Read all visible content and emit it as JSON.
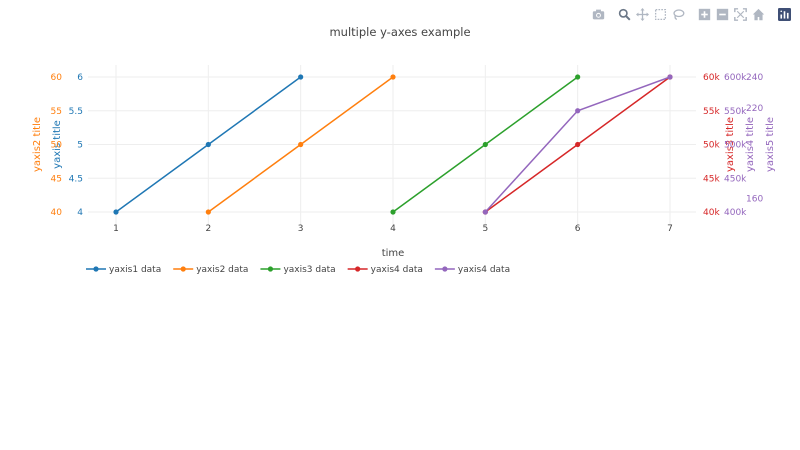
{
  "modebar": {
    "buttons": [
      {
        "name": "camera-icon"
      },
      {
        "name": "zoom-icon"
      },
      {
        "name": "pan-icon"
      },
      {
        "name": "box-select-icon"
      },
      {
        "name": "lasso-select-icon"
      },
      {
        "name": "zoom-in-icon"
      },
      {
        "name": "zoom-out-icon"
      },
      {
        "name": "autoscale-icon"
      },
      {
        "name": "reset-axes-icon"
      },
      {
        "name": "plotly-logo-icon"
      }
    ],
    "icon_color": "#b0b7c2",
    "active_color": "#6b7787",
    "logo_color": "#3f4f75"
  },
  "chart_data": {
    "type": "line",
    "title": "multiple y-axes example",
    "xlabel": "time",
    "xlim": [
      0.7,
      7.3
    ],
    "xticks": [
      "1",
      "2",
      "3",
      "4",
      "5",
      "6",
      "7"
    ],
    "grid": true,
    "legend_position": "bottom-left",
    "axes": [
      {
        "id": "y1",
        "title": "yaxis title",
        "color": "#1f77b4",
        "side": "left",
        "range": [
          39,
          61.5
        ],
        "ticks": [
          {
            "v": 40,
            "label": "4"
          },
          {
            "v": 45,
            "label": "4.5"
          },
          {
            "v": 50,
            "label": "5"
          },
          {
            "v": 55,
            "label": "5.5"
          },
          {
            "v": 60,
            "label": "6"
          }
        ]
      },
      {
        "id": "y2",
        "title": "yaxis2 title",
        "color": "#ff7f0e",
        "side": "left",
        "range": [
          39,
          61.5
        ],
        "ticks": [
          {
            "v": 40,
            "label": "40"
          },
          {
            "v": 45,
            "label": "45"
          },
          {
            "v": 50,
            "label": "50"
          },
          {
            "v": 55,
            "label": "55"
          },
          {
            "v": 60,
            "label": "60"
          }
        ]
      },
      {
        "id": "y3",
        "title": "yaxis3 title",
        "color": "#d62728",
        "side": "right",
        "range": [
          39,
          61.5
        ],
        "ticks": [
          {
            "v": 40,
            "label": "40k"
          },
          {
            "v": 45,
            "label": "45k"
          },
          {
            "v": 50,
            "label": "50k"
          },
          {
            "v": 55,
            "label": "55k"
          },
          {
            "v": 60,
            "label": "60k"
          }
        ]
      },
      {
        "id": "y4",
        "title": "yaxis4 title",
        "color": "#9467bd",
        "side": "right",
        "range": [
          39,
          61.5
        ],
        "ticks": [
          {
            "v": 40,
            "label": "400k"
          },
          {
            "v": 45,
            "label": "450k"
          },
          {
            "v": 50,
            "label": "500k"
          },
          {
            "v": 55,
            "label": "550k"
          },
          {
            "v": 60,
            "label": "600k"
          }
        ]
      },
      {
        "id": "y5",
        "title": "yaxis5 title",
        "color": "#9467bd",
        "side": "right",
        "range": [
          39,
          61.5
        ],
        "ticks": [
          {
            "v": 42,
            "label": "160"
          },
          {
            "v": 55.4,
            "label": "220"
          },
          {
            "v": 60,
            "label": "240"
          }
        ]
      }
    ],
    "series": [
      {
        "name": "yaxis1 data",
        "color": "#1f77b4",
        "x": [
          1,
          2,
          3
        ],
        "y": [
          4,
          5,
          6
        ],
        "plot_y": [
          40,
          50,
          60
        ]
      },
      {
        "name": "yaxis2 data",
        "color": "#ff7f0e",
        "x": [
          2,
          3,
          4
        ],
        "y": [
          40,
          50,
          60
        ],
        "plot_y": [
          40,
          50,
          60
        ]
      },
      {
        "name": "yaxis3 data",
        "color": "#2ca02c",
        "x": [
          4,
          5,
          6
        ],
        "y": [
          40000,
          50000,
          60000
        ],
        "plot_y": [
          40,
          50,
          60
        ]
      },
      {
        "name": "yaxis4 data",
        "color": "#d62728",
        "x": [
          5,
          6,
          7
        ],
        "y": [
          400000,
          500000,
          600000
        ],
        "plot_y": [
          40,
          50,
          60
        ]
      },
      {
        "name": "yaxis4 data",
        "color": "#9467bd",
        "x": [
          5,
          6,
          7
        ],
        "y": [
          400000,
          550000,
          600000
        ],
        "plot_y": [
          40,
          55,
          60
        ]
      }
    ]
  }
}
